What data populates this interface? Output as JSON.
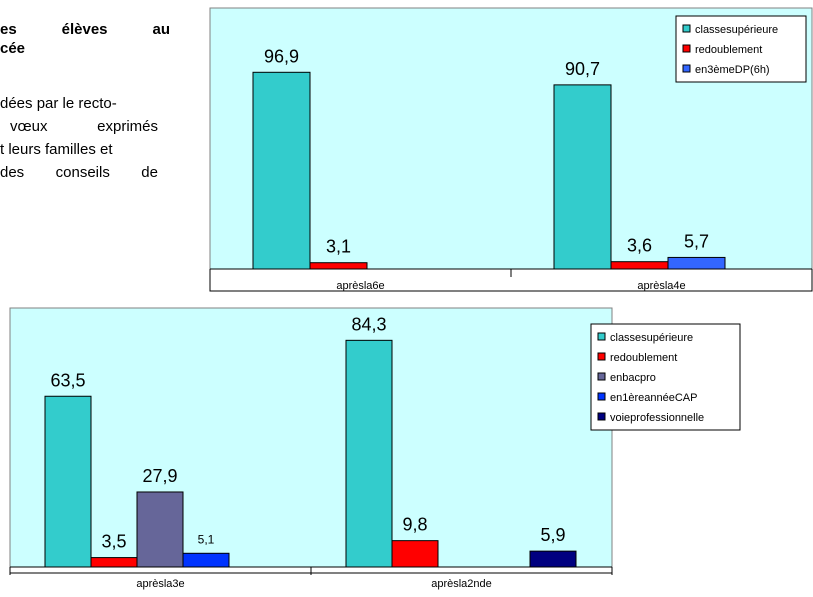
{
  "text": {
    "heading_line1": [
      "es",
      "élèves",
      "au"
    ],
    "heading_line2": "cée",
    "para_lines": [
      [
        "dées par le recto-"
      ],
      [
        "vœux",
        "exprimés"
      ],
      [
        "t leurs familles et"
      ],
      [
        "des",
        "conseils",
        "de"
      ]
    ]
  },
  "chart_data": [
    {
      "type": "bar",
      "categories": [
        "aprèsla6e",
        "aprèsla4e"
      ],
      "series": [
        {
          "name": "classesupérieure",
          "color": "#33CCCC",
          "values": [
            96.9,
            90.7
          ],
          "labels": [
            "96,9",
            "90,7"
          ]
        },
        {
          "name": "redoublement",
          "color": "#FF0000",
          "values": [
            3.1,
            3.6
          ],
          "labels": [
            "3,1",
            "3,6"
          ]
        },
        {
          "name": "en3èmeDP(6h)",
          "color": "#3366FF",
          "values": [
            null,
            5.7
          ],
          "labels": [
            null,
            "5,7"
          ]
        }
      ],
      "ylim": [
        0,
        100
      ],
      "grid": false,
      "legend": "top-right",
      "plot_background": "#CCFFFF"
    },
    {
      "type": "bar",
      "categories": [
        "aprèsla3e",
        "aprèsla2nde"
      ],
      "series": [
        {
          "name": "classesupérieure",
          "color": "#33CCCC",
          "values": [
            63.5,
            84.3
          ],
          "labels": [
            "63,5",
            "84,3"
          ]
        },
        {
          "name": "redoublement",
          "color": "#FF0000",
          "values": [
            3.5,
            9.8
          ],
          "labels": [
            "3,5",
            "9,8"
          ]
        },
        {
          "name": "enbacpro",
          "color": "#666699",
          "values": [
            27.9,
            null
          ],
          "labels": [
            "27,9",
            null
          ]
        },
        {
          "name": "en1èreannéeCAP",
          "color": "#0033FF",
          "values": [
            5.1,
            null
          ],
          "labels": [
            "5,1",
            null
          ]
        },
        {
          "name": "voieprofessionnelle",
          "color": "#000080",
          "values": [
            null,
            5.9
          ],
          "labels": [
            null,
            "5,9"
          ]
        }
      ],
      "ylim": [
        0,
        90
      ],
      "grid": false,
      "legend": "top-right",
      "plot_background": "#CCFFFF"
    }
  ]
}
